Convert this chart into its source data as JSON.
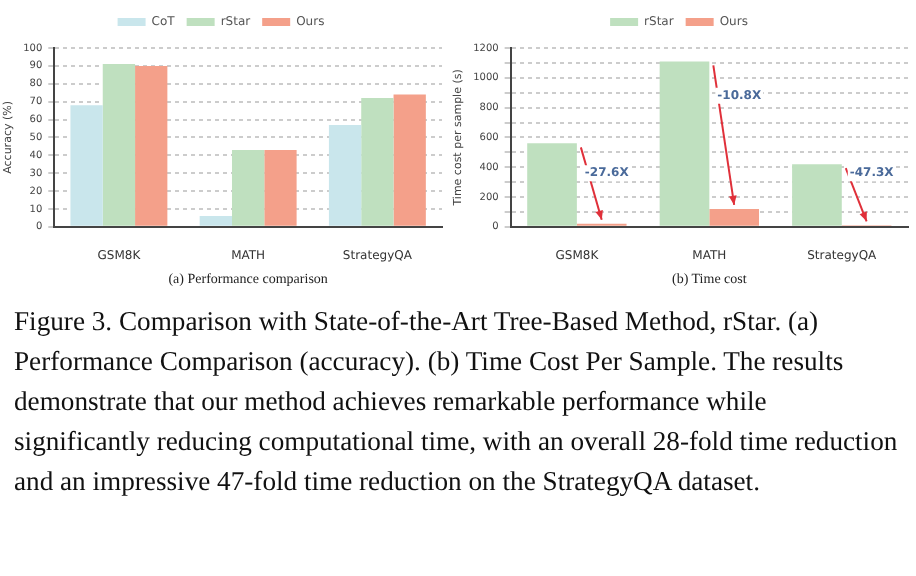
{
  "chart_data": [
    {
      "type": "bar",
      "xlabel": "(a) Performance comparison",
      "ylabel": "Accuracy (%)",
      "categories": [
        "GSM8K",
        "MATH",
        "StrategyQA"
      ],
      "series": [
        {
          "name": "CoT",
          "color": "#c9e6ec",
          "values": [
            68,
            6,
            57
          ]
        },
        {
          "name": "rStar",
          "color": "#bfe0bf",
          "values": [
            91,
            43,
            72
          ]
        },
        {
          "name": "Ours",
          "color": "#f4a08a",
          "values": [
            90,
            43,
            74
          ]
        }
      ],
      "ylim": [
        0,
        100
      ],
      "yticks": [
        0,
        10,
        20,
        30,
        40,
        50,
        60,
        70,
        80,
        90,
        100
      ],
      "grid": "y",
      "legend": "top"
    },
    {
      "type": "bar",
      "xlabel": "(b) Time cost",
      "ylabel": "Time cost per sample (s)",
      "categories": [
        "GSM8K",
        "MATH",
        "StrategyQA"
      ],
      "series": [
        {
          "name": "rStar",
          "color": "#bfe0bf",
          "values": [
            560,
            1110,
            420
          ]
        },
        {
          "name": "Ours",
          "color": "#f4a08a",
          "values": [
            20,
            120,
            10
          ]
        }
      ],
      "ylim": [
        0,
        1200
      ],
      "yticks": [
        0,
        {
          "value": 100,
          "label": null
        },
        200,
        {
          "value": 300,
          "label": null
        },
        400,
        {
          "value": 500,
          "label": null
        },
        600,
        {
          "value": 700,
          "label": null
        },
        800,
        {
          "value": 900,
          "label": null
        },
        1000,
        {
          "value": 1100,
          "label": null
        },
        1200
      ],
      "grid": "y",
      "legend": "top",
      "annotations": [
        {
          "text": "-27.6X",
          "x": "GSM8K",
          "y": 360
        },
        {
          "text": "-10.8X",
          "x": "MATH",
          "y": 880
        },
        {
          "text": "-47.3X",
          "x": "StrategyQA",
          "y": 360
        },
        "Figure 3. Comparison with State-of-the-Art Tree-Based Method, rStar. (a) Performance Comparison (accuracy). (b) Time Cost Per Sample. The results demonstrate that our method achieves remarkable performance while significantly reducing computational time, with an overall 28-fold time reduction and an impressive 47-fold time reduction on the StrategyQA dataset."
      ]
    }
  ]
}
